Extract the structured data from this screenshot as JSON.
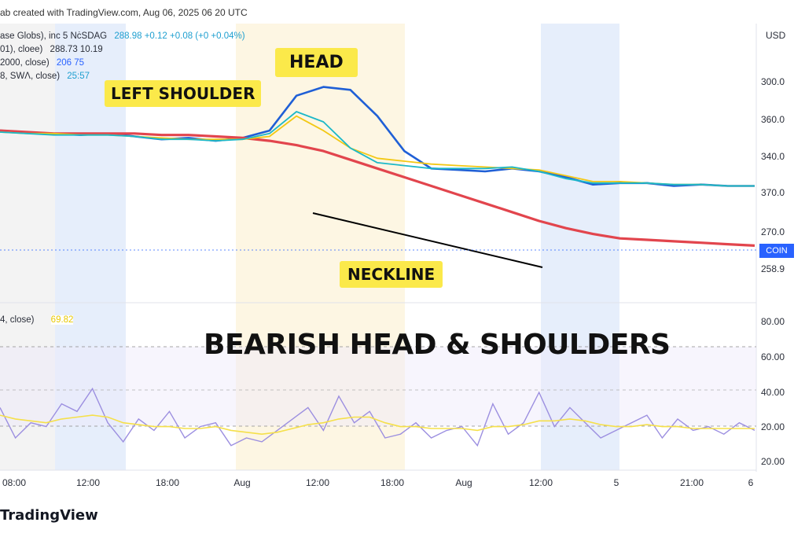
{
  "header": {
    "text": "ab created with TradingView.com, Aug 06, 2025 06 20 UTC"
  },
  "legend": {
    "line1": {
      "label": "ase Globs), inc   5   NċSDAG",
      "values": "288.98  +0.12  +0.08  (+0 +0.04%)"
    },
    "line2": {
      "label": "01), cloee)",
      "values": "288.73  10.19"
    },
    "line3": {
      "label": "2000, close)",
      "values": "206 75"
    },
    "line4": {
      "label": "8, SWΛ, close)",
      "values": "25:57"
    }
  },
  "rsi_legend": {
    "label": "4, close)",
    "value": "69.82"
  },
  "annotations": {
    "left_shoulder": "LEFT SHOULDER",
    "head": "HEAD",
    "neckline": "NECKLINE",
    "title": "BEARISH HEAD & SHOULDERS"
  },
  "axis": {
    "currency": "USD",
    "price_ticks": [
      "300.0",
      "360.0",
      "340.0",
      "370.0",
      "270.0",
      "258.9"
    ],
    "rsi_ticks": [
      "80.00",
      "60.00",
      "40.00",
      "20.00",
      "20.00"
    ],
    "time_ticks": [
      "08:00",
      "12:00",
      "18:00",
      "Aug",
      "12:00",
      "18:00",
      "Aug",
      "12:00",
      "5",
      "21:00",
      "6"
    ],
    "price_tag": "COIN"
  },
  "brand": "TradingView",
  "colors": {
    "price": "#1f5fd6",
    "ema_long": "#e2454d",
    "ema_mid": "#f2c815",
    "ema_short": "#1cb8c8",
    "envelope": "#4fb3d9",
    "rsi": "#9c8fe0",
    "rsi_ma": "#f5e04a",
    "session_yellow": "#fdf6e3",
    "session_blue": "#e6eefb",
    "callout": "#fbe94a",
    "neckline": "#000000"
  },
  "chart_data": [
    {
      "type": "line",
      "title": "",
      "series": [
        {
          "values": [
            362,
            361,
            360,
            359,
            360,
            358,
            356,
            357,
            355,
            357,
            362,
            386,
            392,
            390,
            372,
            348,
            336,
            335,
            334,
            336,
            334,
            330,
            325,
            326,
            326,
            324,
            325,
            324,
            324
          ]
        },
        {
          "values": [
            362,
            361,
            360,
            360,
            360,
            360,
            359,
            359,
            358,
            357,
            355,
            352,
            348,
            342,
            336,
            330,
            324,
            318,
            312,
            306,
            300,
            295,
            291,
            288,
            287,
            286,
            285,
            284,
            283
          ]
        },
        {
          "values": [
            361,
            360,
            360,
            359,
            359,
            358,
            357,
            356,
            356,
            356,
            358,
            372,
            362,
            350,
            343,
            341,
            339,
            338,
            337,
            336,
            335,
            331,
            327,
            327,
            326,
            325,
            325,
            324,
            324
          ]
        },
        {
          "values": [
            361,
            360,
            359,
            359,
            359,
            358,
            356,
            356,
            355,
            356,
            360,
            375,
            368,
            350,
            340,
            338,
            336,
            336,
            336,
            337,
            334,
            329,
            326,
            326,
            326,
            325,
            325,
            324,
            324
          ]
        }
      ]
    },
    {
      "type": "line",
      "title": "",
      "ylim": [
        10,
        85
      ],
      "series": [
        {
          "values": [
            38,
            22,
            30,
            28,
            40,
            36,
            48,
            30,
            20,
            32,
            26,
            36,
            22,
            28,
            30,
            18,
            22,
            20,
            26,
            32,
            38,
            26,
            44,
            30,
            36,
            22,
            24,
            30,
            22,
            26,
            28,
            18,
            40,
            24,
            30,
            46,
            28,
            38,
            30,
            22,
            26,
            30,
            34,
            22,
            32,
            26,
            28,
            24,
            30,
            26
          ]
        },
        {
          "values": [
            34,
            32,
            31,
            30,
            32,
            33,
            34,
            33,
            30,
            29,
            28,
            28,
            27,
            27,
            28,
            26,
            25,
            24,
            25,
            27,
            29,
            30,
            32,
            33,
            33,
            30,
            28,
            28,
            27,
            27,
            27,
            26,
            28,
            28,
            29,
            31,
            31,
            32,
            31,
            29,
            28,
            28,
            29,
            28,
            28,
            27,
            27,
            27,
            27,
            27
          ]
        }
      ]
    }
  ]
}
